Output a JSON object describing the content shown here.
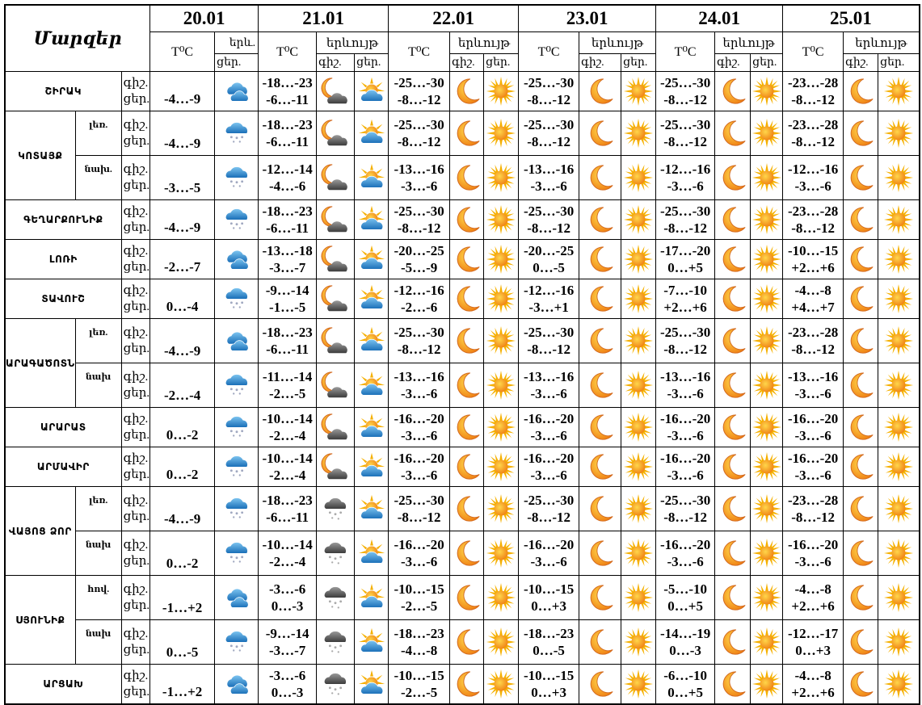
{
  "header": {
    "regions_label": "Մարզեր",
    "temp_label": "T⁰C",
    "phenomenon_label": "երևույթ",
    "phenomenon_short": "երև.",
    "night_label": "գիշ.",
    "day_label": "ցեր."
  },
  "days": [
    "20.01",
    "21.01",
    "22.01",
    "23.01",
    "24.01",
    "25.01"
  ],
  "regions": [
    {
      "name": "ՇԻՐԱԿ",
      "rows": [
        {
          "sub": null,
          "d20": {
            "temp": "-4…-9",
            "icon": "cloudy"
          },
          "forecast": [
            {
              "night": "-18…-23",
              "day": "-6…-11",
              "night_icon": "moon-cloud",
              "day_icon": "sun-cloud"
            },
            {
              "night": "-25…-30",
              "day": "-8…-12",
              "night_icon": "moon",
              "day_icon": "sun"
            },
            {
              "night": "-25…-30",
              "day": "-8…-12",
              "night_icon": "moon",
              "day_icon": "sun"
            },
            {
              "night": "-25…-30",
              "day": "-8…-12",
              "night_icon": "moon",
              "day_icon": "sun"
            },
            {
              "night": "-23…-28",
              "day": "-8…-12",
              "night_icon": "moon",
              "day_icon": "sun"
            }
          ]
        }
      ]
    },
    {
      "name": "ԿՈՏԱՅՔ",
      "rows": [
        {
          "sub": "լեռ.",
          "d20": {
            "temp": "-4…-9",
            "icon": "snow"
          },
          "forecast": [
            {
              "night": "-18…-23",
              "day": "-6…-11",
              "night_icon": "moon-cloud",
              "day_icon": "sun-cloud"
            },
            {
              "night": "-25…-30",
              "day": "-8…-12",
              "night_icon": "moon",
              "day_icon": "sun"
            },
            {
              "night": "-25…-30",
              "day": "-8…-12",
              "night_icon": "moon",
              "day_icon": "sun"
            },
            {
              "night": "-25…-30",
              "day": "-8…-12",
              "night_icon": "moon",
              "day_icon": "sun"
            },
            {
              "night": "-23…-28",
              "day": "-8…-12",
              "night_icon": "moon",
              "day_icon": "sun"
            }
          ]
        },
        {
          "sub": "նախ.",
          "d20": {
            "temp": "-3…-5",
            "icon": "snow"
          },
          "forecast": [
            {
              "night": "-12…-14",
              "day": "-4…-6",
              "night_icon": "moon-cloud",
              "day_icon": "sun-cloud"
            },
            {
              "night": "-13…-16",
              "day": "-3…-6",
              "night_icon": "moon",
              "day_icon": "sun"
            },
            {
              "night": "-13…-16",
              "day": "-3…-6",
              "night_icon": "moon",
              "day_icon": "sun"
            },
            {
              "night": "-12…-16",
              "day": "-3…-6",
              "night_icon": "moon",
              "day_icon": "sun"
            },
            {
              "night": "-12…-16",
              "day": "-3…-6",
              "night_icon": "moon",
              "day_icon": "sun"
            }
          ]
        }
      ]
    },
    {
      "name": "ԳԵՂԱՐՔՈՒՆԻՔ",
      "rows": [
        {
          "sub": null,
          "d20": {
            "temp": "-4…-9",
            "icon": "snow"
          },
          "forecast": [
            {
              "night": "-18…-23",
              "day": "-6…-11",
              "night_icon": "moon-cloud",
              "day_icon": "sun-cloud"
            },
            {
              "night": "-25…-30",
              "day": "-8…-12",
              "night_icon": "moon",
              "day_icon": "sun"
            },
            {
              "night": "-25…-30",
              "day": "-8…-12",
              "night_icon": "moon",
              "day_icon": "sun"
            },
            {
              "night": "-25…-30",
              "day": "-8…-12",
              "night_icon": "moon",
              "day_icon": "sun"
            },
            {
              "night": "-23…-28",
              "day": "-8…-12",
              "night_icon": "moon",
              "day_icon": "sun"
            }
          ]
        }
      ]
    },
    {
      "name": "ԼՈՌԻ",
      "rows": [
        {
          "sub": null,
          "d20": {
            "temp": "-2…-7",
            "icon": "cloudy"
          },
          "forecast": [
            {
              "night": "-13…-18",
              "day": "-3…-7",
              "night_icon": "moon-cloud",
              "day_icon": "sun-cloud"
            },
            {
              "night": "-20…-25",
              "day": "-5…-9",
              "night_icon": "moon",
              "day_icon": "sun"
            },
            {
              "night": "-20…-25",
              "day": "0…-5",
              "night_icon": "moon",
              "day_icon": "sun"
            },
            {
              "night": "-17…-20",
              "day": "0…+5",
              "night_icon": "moon",
              "day_icon": "sun"
            },
            {
              "night": "-10…-15",
              "day": "+2…+6",
              "night_icon": "moon",
              "day_icon": "sun"
            }
          ]
        }
      ]
    },
    {
      "name": "ՏԱՎՈՒՇ",
      "rows": [
        {
          "sub": null,
          "d20": {
            "temp": "0…-4",
            "icon": "snow"
          },
          "forecast": [
            {
              "night": "-9…-14",
              "day": "-1…-5",
              "night_icon": "moon-cloud",
              "day_icon": "sun-cloud"
            },
            {
              "night": "-12…-16",
              "day": "-2…-6",
              "night_icon": "moon",
              "day_icon": "sun"
            },
            {
              "night": "-12…-16",
              "day": "-3…+1",
              "night_icon": "moon",
              "day_icon": "sun"
            },
            {
              "night": "-7…-10",
              "day": "+2…+6",
              "night_icon": "moon",
              "day_icon": "sun"
            },
            {
              "night": "-4…-8",
              "day": "+4…+7",
              "night_icon": "moon",
              "day_icon": "sun"
            }
          ]
        }
      ]
    },
    {
      "name": "ԱՐԱԳԱԾՈՏՆ",
      "rows": [
        {
          "sub": "լեռ.",
          "d20": {
            "temp": "-4…-9",
            "icon": "cloudy"
          },
          "forecast": [
            {
              "night": "-18…-23",
              "day": "-6…-11",
              "night_icon": "moon-cloud",
              "day_icon": "sun-cloud"
            },
            {
              "night": "-25…-30",
              "day": "-8…-12",
              "night_icon": "moon",
              "day_icon": "sun"
            },
            {
              "night": "-25…-30",
              "day": "-8…-12",
              "night_icon": "moon",
              "day_icon": "sun"
            },
            {
              "night": "-25…-30",
              "day": "-8…-12",
              "night_icon": "moon",
              "day_icon": "sun"
            },
            {
              "night": "-23…-28",
              "day": "-8…-12",
              "night_icon": "moon",
              "day_icon": "sun"
            }
          ]
        },
        {
          "sub": "նախ",
          "d20": {
            "temp": "-2…-4",
            "icon": "snow"
          },
          "forecast": [
            {
              "night": "-11…-14",
              "day": "-2…-5",
              "night_icon": "moon-cloud",
              "day_icon": "sun-cloud"
            },
            {
              "night": "-13…-16",
              "day": "-3…-6",
              "night_icon": "moon",
              "day_icon": "sun"
            },
            {
              "night": "-13…-16",
              "day": "-3…-6",
              "night_icon": "moon",
              "day_icon": "sun"
            },
            {
              "night": "-13…-16",
              "day": "-3…-6",
              "night_icon": "moon",
              "day_icon": "sun"
            },
            {
              "night": "-13…-16",
              "day": "-3…-6",
              "night_icon": "moon",
              "day_icon": "sun"
            }
          ]
        }
      ]
    },
    {
      "name": "ԱՐԱՐԱՏ",
      "rows": [
        {
          "sub": null,
          "d20": {
            "temp": "0…-2",
            "icon": "snow"
          },
          "forecast": [
            {
              "night": "-10…-14",
              "day": "-2…-4",
              "night_icon": "moon-cloud",
              "day_icon": "sun-cloud"
            },
            {
              "night": "-16…-20",
              "day": "-3…-6",
              "night_icon": "moon",
              "day_icon": "sun"
            },
            {
              "night": "-16…-20",
              "day": "-3…-6",
              "night_icon": "moon",
              "day_icon": "sun"
            },
            {
              "night": "-16…-20",
              "day": "-3…-6",
              "night_icon": "moon",
              "day_icon": "sun"
            },
            {
              "night": "-16…-20",
              "day": "-3…-6",
              "night_icon": "moon",
              "day_icon": "sun"
            }
          ]
        }
      ]
    },
    {
      "name": "ԱՐՄԱՎԻՐ",
      "rows": [
        {
          "sub": null,
          "d20": {
            "temp": "0…-2",
            "icon": "snow"
          },
          "forecast": [
            {
              "night": "-10…-14",
              "day": "-2…-4",
              "night_icon": "moon-cloud",
              "day_icon": "sun-cloud"
            },
            {
              "night": "-16…-20",
              "day": "-3…-6",
              "night_icon": "moon",
              "day_icon": "sun"
            },
            {
              "night": "-16…-20",
              "day": "-3…-6",
              "night_icon": "moon",
              "day_icon": "sun"
            },
            {
              "night": "-16…-20",
              "day": "-3…-6",
              "night_icon": "moon",
              "day_icon": "sun"
            },
            {
              "night": "-16…-20",
              "day": "-3…-6",
              "night_icon": "moon",
              "day_icon": "sun"
            }
          ]
        }
      ]
    },
    {
      "name": "ՎԱՅՈՑ ՁՈՐ",
      "rows": [
        {
          "sub": "լեռ.",
          "d20": {
            "temp": "-4…-9",
            "icon": "snow"
          },
          "forecast": [
            {
              "night": "-18…-23",
              "day": "-6…-11",
              "night_icon": "snow-gray",
              "day_icon": "sun-cloud"
            },
            {
              "night": "-25…-30",
              "day": "-8…-12",
              "night_icon": "moon",
              "day_icon": "sun"
            },
            {
              "night": "-25…-30",
              "day": "-8…-12",
              "night_icon": "moon",
              "day_icon": "sun"
            },
            {
              "night": "-25…-30",
              "day": "-8…-12",
              "night_icon": "moon",
              "day_icon": "sun"
            },
            {
              "night": "-23…-28",
              "day": "-8…-12",
              "night_icon": "moon",
              "day_icon": "sun"
            }
          ]
        },
        {
          "sub": "նախ",
          "d20": {
            "temp": "0…-2",
            "icon": "snow"
          },
          "forecast": [
            {
              "night": "-10…-14",
              "day": "-2…-4",
              "night_icon": "snow-gray",
              "day_icon": "sun-cloud"
            },
            {
              "night": "-16…-20",
              "day": "-3…-6",
              "night_icon": "moon",
              "day_icon": "sun"
            },
            {
              "night": "-16…-20",
              "day": "-3…-6",
              "night_icon": "moon",
              "day_icon": "sun"
            },
            {
              "night": "-16…-20",
              "day": "-3…-6",
              "night_icon": "moon",
              "day_icon": "sun"
            },
            {
              "night": "-16…-20",
              "day": "-3…-6",
              "night_icon": "moon",
              "day_icon": "sun"
            }
          ]
        }
      ]
    },
    {
      "name": "ՍՅՈՒՆԻՔ",
      "rows": [
        {
          "sub": "հով.",
          "d20": {
            "temp": "-1…+2",
            "icon": "cloudy"
          },
          "forecast": [
            {
              "night": "-3…-6",
              "day": "0…-3",
              "night_icon": "snow-gray",
              "day_icon": "sun-cloud"
            },
            {
              "night": "-10…-15",
              "day": "-2…-5",
              "night_icon": "moon",
              "day_icon": "sun"
            },
            {
              "night": "-10…-15",
              "day": "0…+3",
              "night_icon": "moon",
              "day_icon": "sun"
            },
            {
              "night": "-5…-10",
              "day": "0…+5",
              "night_icon": "moon",
              "day_icon": "sun"
            },
            {
              "night": "-4…-8",
              "day": "+2…+6",
              "night_icon": "moon",
              "day_icon": "sun"
            }
          ]
        },
        {
          "sub": "նախ",
          "d20": {
            "temp": "0…-5",
            "icon": "snow"
          },
          "forecast": [
            {
              "night": "-9…-14",
              "day": "-3…-7",
              "night_icon": "snow-gray",
              "day_icon": "sun-cloud"
            },
            {
              "night": "-18…-23",
              "day": "-4…-8",
              "night_icon": "moon",
              "day_icon": "sun"
            },
            {
              "night": "-18…-23",
              "day": "0…-5",
              "night_icon": "moon",
              "day_icon": "sun"
            },
            {
              "night": "-14…-19",
              "day": "0…-3",
              "night_icon": "moon",
              "day_icon": "sun"
            },
            {
              "night": "-12…-17",
              "day": "0…+3",
              "night_icon": "moon",
              "day_icon": "sun"
            }
          ]
        }
      ]
    },
    {
      "name": "ԱՐՑԱԽ",
      "rows": [
        {
          "sub": null,
          "d20": {
            "temp": "-1…+2",
            "icon": "cloudy"
          },
          "forecast": [
            {
              "night": "-3…-6",
              "day": "0…-3",
              "night_icon": "snow-gray",
              "day_icon": "sun-cloud"
            },
            {
              "night": "-10…-15",
              "day": "-2…-5",
              "night_icon": "moon",
              "day_icon": "sun"
            },
            {
              "night": "-10…-15",
              "day": "0…+3",
              "night_icon": "moon",
              "day_icon": "sun"
            },
            {
              "night": "-6…-10",
              "day": "0…+5",
              "night_icon": "moon",
              "day_icon": "sun"
            },
            {
              "night": "-4…-8",
              "day": "+2…+6",
              "night_icon": "moon",
              "day_icon": "sun"
            }
          ]
        }
      ]
    }
  ]
}
